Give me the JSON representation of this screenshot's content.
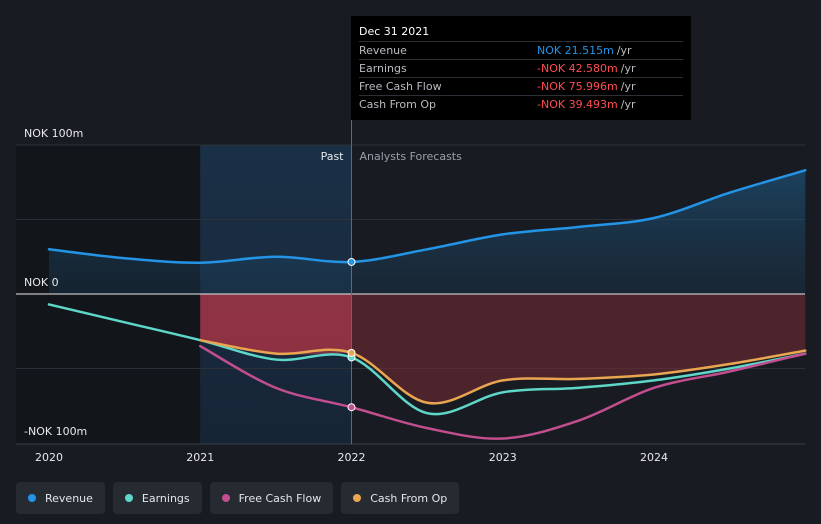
{
  "chart_data": {
    "type": "line",
    "x_ticks": [
      "2020",
      "2021",
      "2022",
      "2023",
      "2024"
    ],
    "y_ticks": [
      {
        "label": "NOK 100m",
        "value": 100
      },
      {
        "label": "NOK 0",
        "value": 0
      },
      {
        "label": "-NOK 100m",
        "value": -100
      }
    ],
    "ylim": [
      -100,
      100
    ],
    "xlim": [
      2019.8,
      2025.0
    ],
    "region_past": "Past",
    "region_forecast": "Analysts Forecasts",
    "past_start": 2021.0,
    "forecast_start": 2022.0,
    "series": [
      {
        "name": "Revenue",
        "color": "#2394e6",
        "points": [
          [
            2020.0,
            30
          ],
          [
            2020.5,
            24
          ],
          [
            2021.0,
            21
          ],
          [
            2021.5,
            25
          ],
          [
            2022.0,
            21.5
          ],
          [
            2022.5,
            30
          ],
          [
            2023.0,
            40
          ],
          [
            2023.5,
            45
          ],
          [
            2024.0,
            51
          ],
          [
            2024.5,
            68
          ],
          [
            2025.0,
            83
          ]
        ]
      },
      {
        "name": "Earnings",
        "color": "#5ed6c8",
        "points": [
          [
            2020.0,
            -7
          ],
          [
            2020.5,
            -19
          ],
          [
            2021.0,
            -31
          ],
          [
            2021.5,
            -44
          ],
          [
            2022.0,
            -42.58
          ],
          [
            2022.5,
            -80
          ],
          [
            2023.0,
            -66
          ],
          [
            2023.5,
            -63
          ],
          [
            2024.0,
            -58
          ],
          [
            2024.5,
            -50
          ],
          [
            2025.0,
            -40
          ]
        ]
      },
      {
        "name": "Free Cash Flow",
        "color": "#c24e8f",
        "points": [
          [
            2021.0,
            -35
          ],
          [
            2021.5,
            -63
          ],
          [
            2022.0,
            -75.996
          ],
          [
            2022.5,
            -90
          ],
          [
            2023.0,
            -97
          ],
          [
            2023.5,
            -85
          ],
          [
            2024.0,
            -63
          ],
          [
            2024.5,
            -52
          ],
          [
            2025.0,
            -40
          ]
        ]
      },
      {
        "name": "Cash From Op",
        "color": "#e9a550",
        "points": [
          [
            2021.0,
            -31
          ],
          [
            2021.5,
            -40
          ],
          [
            2022.0,
            -39.493
          ],
          [
            2022.5,
            -73
          ],
          [
            2023.0,
            -58
          ],
          [
            2023.5,
            -57
          ],
          [
            2024.0,
            -54
          ],
          [
            2024.5,
            -47
          ],
          [
            2025.0,
            -38
          ]
        ]
      }
    ]
  },
  "tooltip": {
    "date": "Dec 31 2021",
    "rows": [
      {
        "label": "Revenue",
        "value": "NOK 21.515m",
        "unit": "/yr",
        "color": "#2394e6"
      },
      {
        "label": "Earnings",
        "value": "-NOK 42.580m",
        "unit": "/yr",
        "color": "#ff4d52"
      },
      {
        "label": "Free Cash Flow",
        "value": "-NOK 75.996m",
        "unit": "/yr",
        "color": "#ff4d52"
      },
      {
        "label": "Cash From Op",
        "value": "-NOK 39.493m",
        "unit": "/yr",
        "color": "#ff4d52"
      }
    ]
  },
  "legend": [
    {
      "label": "Revenue",
      "color": "#2394e6"
    },
    {
      "label": "Earnings",
      "color": "#5ed6c8"
    },
    {
      "label": "Free Cash Flow",
      "color": "#c24e8f"
    },
    {
      "label": "Cash From Op",
      "color": "#e9a550"
    }
  ]
}
